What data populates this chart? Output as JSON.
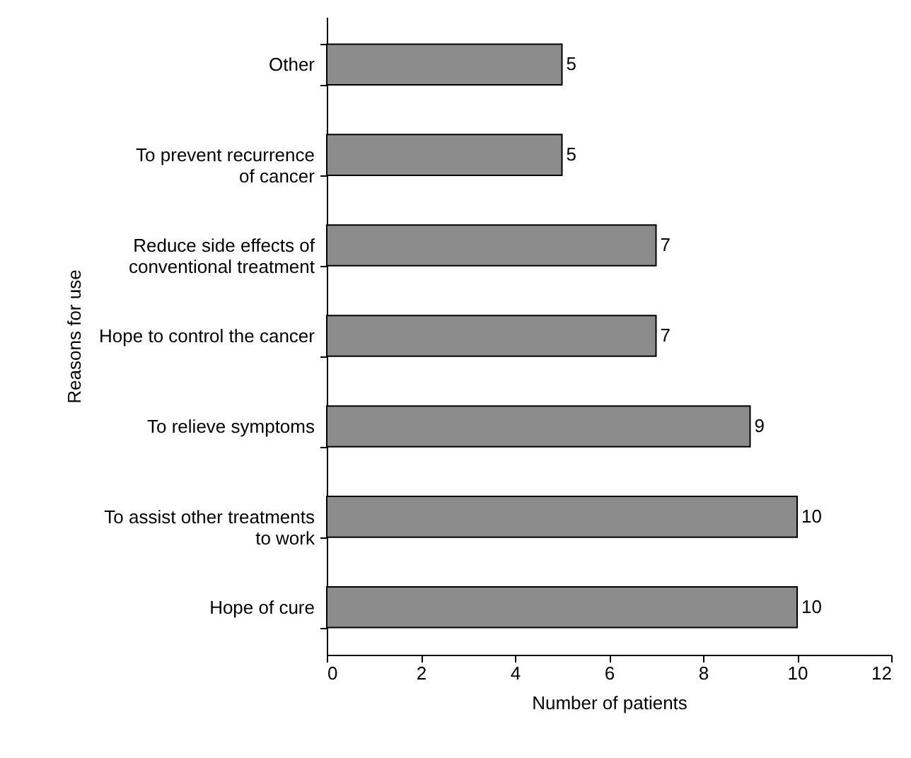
{
  "chart_data": {
    "type": "bar",
    "orientation": "horizontal",
    "xlabel": "Number of patients",
    "ylabel": "Reasons for use",
    "categories": [
      "Other",
      "To prevent recurrence\nof cancer",
      "Reduce side effects of\nconventional treatment",
      "Hope to control the cancer",
      "To relieve symptoms",
      "To assist other treatments\nto work",
      "Hope of cure"
    ],
    "values": [
      5,
      5,
      7,
      7,
      9,
      10,
      10
    ],
    "color": "#8c8c8c",
    "data_labels": true,
    "xlim": [
      0,
      12
    ],
    "xticks": [
      0,
      2,
      4,
      6,
      8,
      10,
      12
    ],
    "grid": false
  }
}
